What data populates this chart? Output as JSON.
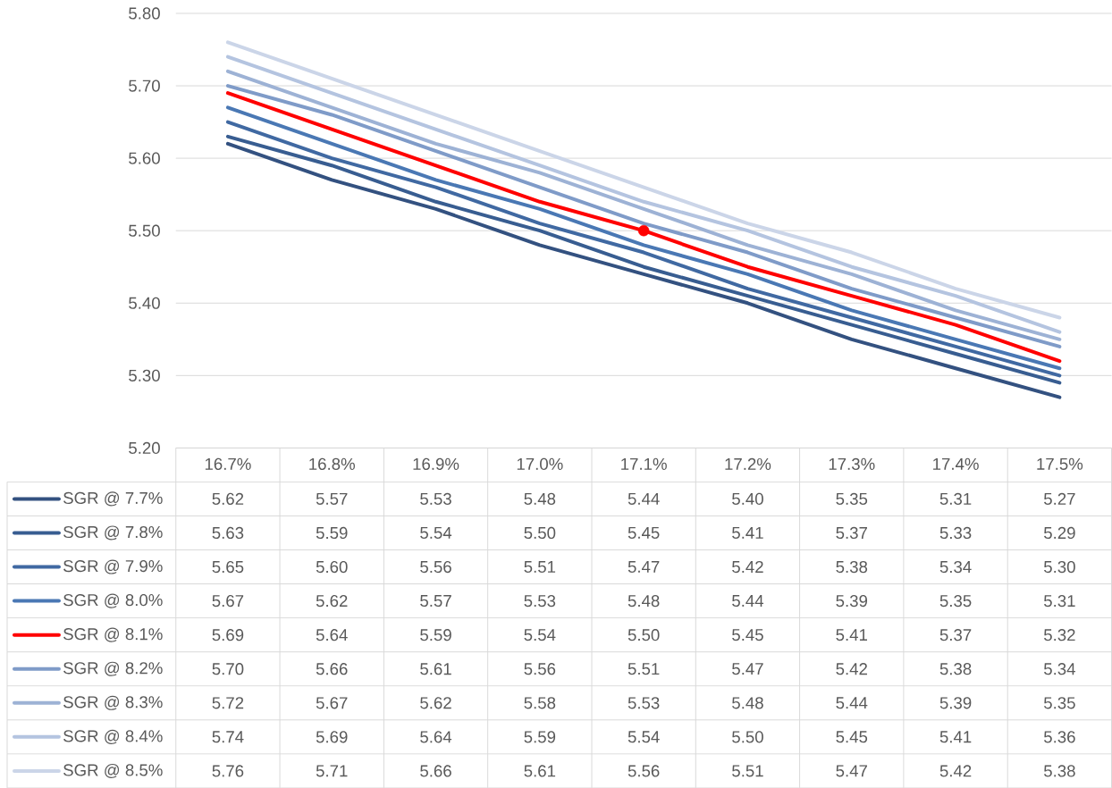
{
  "chart_data": {
    "type": "line",
    "categories": [
      "16.7%",
      "16.8%",
      "16.9%",
      "17.0%",
      "17.1%",
      "17.2%",
      "17.3%",
      "17.4%",
      "17.5%"
    ],
    "ylim": [
      5.2,
      5.8
    ],
    "yticks": [
      {
        "value": 5.2,
        "label": "5.20"
      },
      {
        "value": 5.3,
        "label": "5.30"
      },
      {
        "value": 5.4,
        "label": "5.40"
      },
      {
        "value": 5.5,
        "label": "5.50"
      },
      {
        "value": 5.6,
        "label": "5.60"
      },
      {
        "value": 5.7,
        "label": "5.70"
      },
      {
        "value": 5.8,
        "label": "5.80"
      }
    ],
    "grid": "y",
    "legend": "bottom",
    "line_style": "solid",
    "series": [
      {
        "name": "SGR @ 7.7%",
        "color": "#335180",
        "values": [
          5.62,
          5.57,
          5.53,
          5.48,
          5.44,
          5.4,
          5.35,
          5.31,
          5.27
        ],
        "value_labels": [
          "5.62",
          "5.57",
          "5.53",
          "5.48",
          "5.44",
          "5.40",
          "5.35",
          "5.31",
          "5.27"
        ]
      },
      {
        "name": "SGR @ 7.8%",
        "color": "#385d91",
        "values": [
          5.63,
          5.59,
          5.54,
          5.5,
          5.45,
          5.41,
          5.37,
          5.33,
          5.29
        ],
        "value_labels": [
          "5.63",
          "5.59",
          "5.54",
          "5.50",
          "5.45",
          "5.41",
          "5.37",
          "5.33",
          "5.29"
        ]
      },
      {
        "name": "SGR @ 7.9%",
        "color": "#4069a2",
        "values": [
          5.65,
          5.6,
          5.56,
          5.51,
          5.47,
          5.42,
          5.38,
          5.34,
          5.3
        ],
        "value_labels": [
          "5.65",
          "5.60",
          "5.56",
          "5.51",
          "5.47",
          "5.42",
          "5.38",
          "5.34",
          "5.30"
        ]
      },
      {
        "name": "SGR @ 8.0%",
        "color": "#4a78b4",
        "values": [
          5.67,
          5.62,
          5.57,
          5.53,
          5.48,
          5.44,
          5.39,
          5.35,
          5.31
        ],
        "value_labels": [
          "5.67",
          "5.62",
          "5.57",
          "5.53",
          "5.48",
          "5.44",
          "5.39",
          "5.35",
          "5.31"
        ]
      },
      {
        "name": "SGR @ 8.1%",
        "color": "#ff0000",
        "values": [
          5.69,
          5.64,
          5.59,
          5.54,
          5.5,
          5.45,
          5.41,
          5.37,
          5.32
        ],
        "value_labels": [
          "5.69",
          "5.64",
          "5.59",
          "5.54",
          "5.50",
          "5.45",
          "5.41",
          "5.37",
          "5.32"
        ]
      },
      {
        "name": "SGR @ 8.2%",
        "color": "#7f9bc8",
        "values": [
          5.7,
          5.66,
          5.61,
          5.56,
          5.51,
          5.47,
          5.42,
          5.38,
          5.34
        ],
        "value_labels": [
          "5.70",
          "5.66",
          "5.61",
          "5.56",
          "5.51",
          "5.47",
          "5.42",
          "5.38",
          "5.34"
        ]
      },
      {
        "name": "SGR @ 8.3%",
        "color": "#9db2d5",
        "values": [
          5.72,
          5.67,
          5.62,
          5.58,
          5.53,
          5.48,
          5.44,
          5.39,
          5.35
        ],
        "value_labels": [
          "5.72",
          "5.67",
          "5.62",
          "5.58",
          "5.53",
          "5.48",
          "5.44",
          "5.39",
          "5.35"
        ]
      },
      {
        "name": "SGR @ 8.4%",
        "color": "#b4c4e0",
        "values": [
          5.74,
          5.69,
          5.64,
          5.59,
          5.54,
          5.5,
          5.45,
          5.41,
          5.36
        ],
        "value_labels": [
          "5.74",
          "5.69",
          "5.64",
          "5.59",
          "5.54",
          "5.50",
          "5.45",
          "5.41",
          "5.36"
        ]
      },
      {
        "name": "SGR @ 8.5%",
        "color": "#cbd5e8",
        "values": [
          5.76,
          5.71,
          5.66,
          5.61,
          5.56,
          5.51,
          5.47,
          5.42,
          5.38
        ],
        "value_labels": [
          "5.76",
          "5.71",
          "5.66",
          "5.61",
          "5.56",
          "5.51",
          "5.47",
          "5.42",
          "5.38"
        ]
      },
      {
        "type": "scatter",
        "marker": "circle",
        "color": "#ff0000",
        "x": [
          "17.1%"
        ],
        "values": [
          5.5
        ]
      }
    ]
  }
}
